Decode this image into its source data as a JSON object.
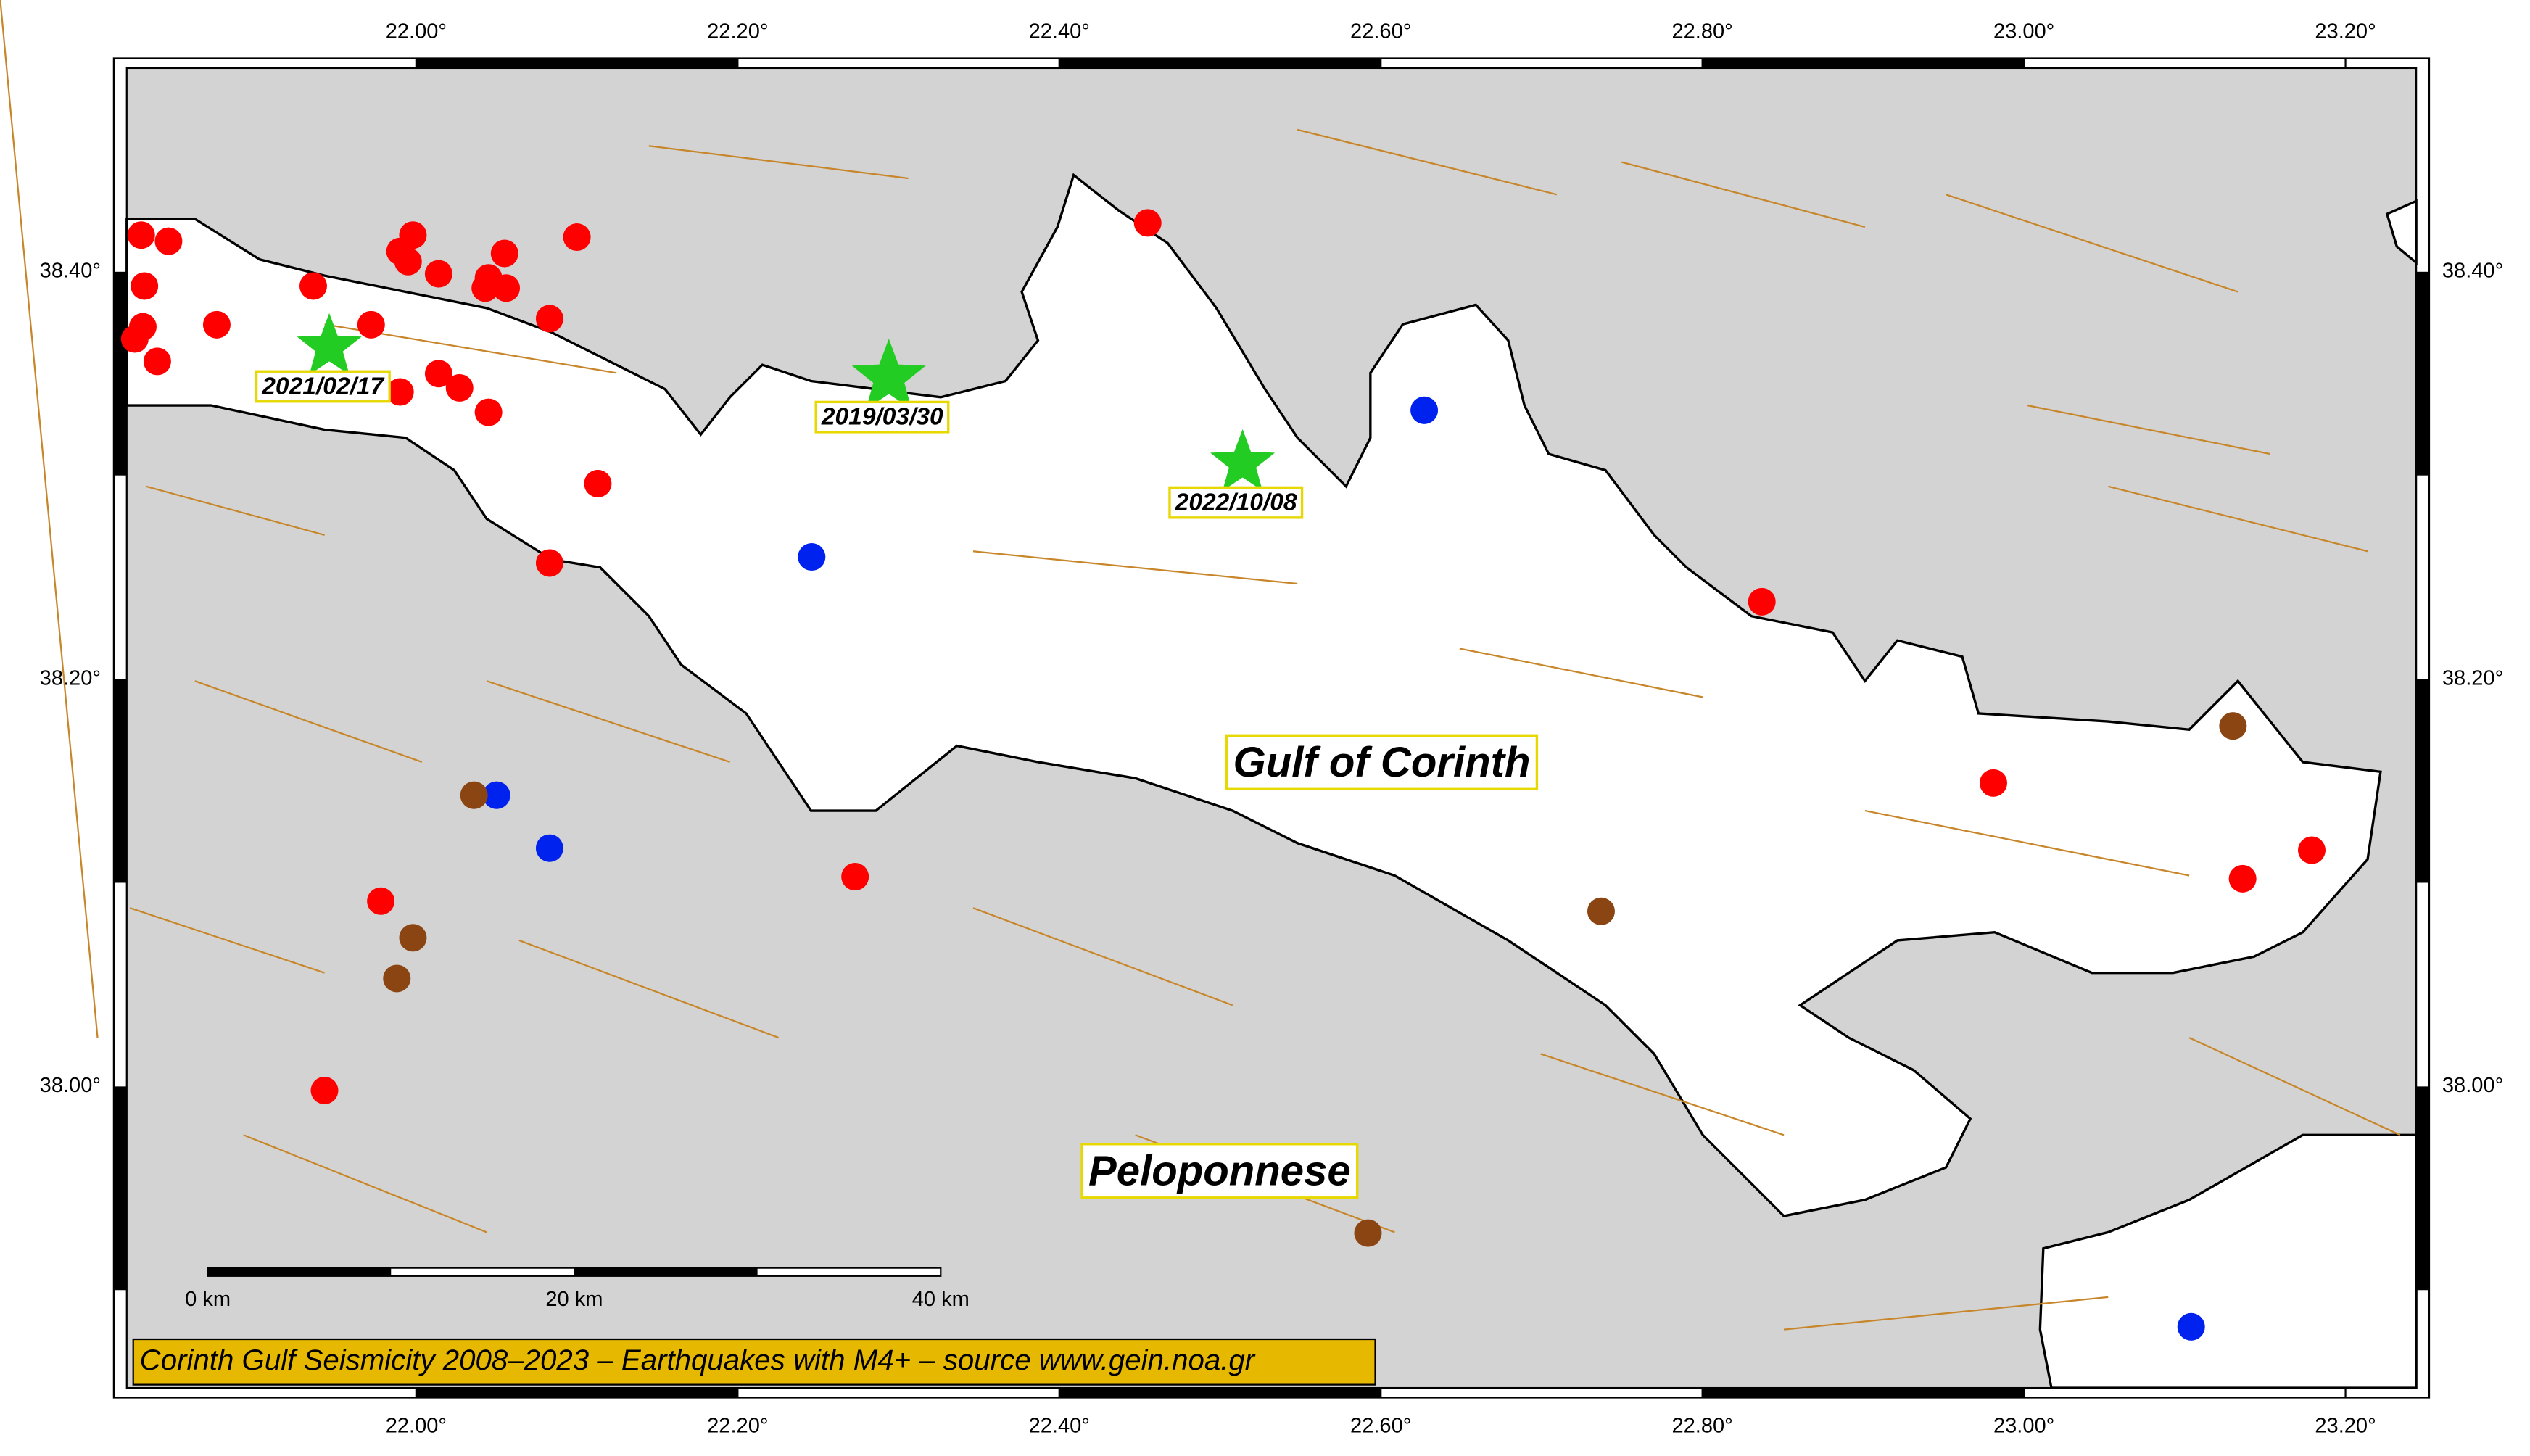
{
  "map": {
    "title": "Corinth Gulf Seismicity 2008–2023 – Earthquakes with M4+ – source www.gein.noa.gr",
    "xlim": [
      21.82,
      23.244
    ],
    "ylim": [
      37.852,
      38.5
    ],
    "xticks": [
      {
        "value": 22.0,
        "label": "22.00°"
      },
      {
        "value": 22.2,
        "label": "22.20°"
      },
      {
        "value": 22.4,
        "label": "22.40°"
      },
      {
        "value": 22.6,
        "label": "22.60°"
      },
      {
        "value": 22.8,
        "label": "22.80°"
      },
      {
        "value": 23.0,
        "label": "23.00°"
      },
      {
        "value": 23.2,
        "label": "23.20°"
      }
    ],
    "yticks": [
      {
        "value": 38.0,
        "label": "38.00°"
      },
      {
        "value": 38.2,
        "label": "38.20°"
      },
      {
        "value": 38.4,
        "label": "38.40°"
      }
    ],
    "place_labels": [
      "Gulf of Corinth",
      "Peloponnese"
    ],
    "scale_bar": [
      {
        "value": 0,
        "label": "0 km"
      },
      {
        "value": 20,
        "label": "20 km"
      },
      {
        "value": 40,
        "label": "40 km"
      }
    ],
    "groups": [
      {
        "color": "#ff0000",
        "lon": [
          21.829,
          21.846,
          21.831,
          21.83,
          21.825,
          21.839,
          21.876,
          21.936,
          21.972,
          21.99,
          21.998,
          21.99,
          21.995,
          22.014,
          22.014,
          22.027,
          22.045,
          22.045,
          22.043,
          22.056,
          22.055,
          22.083,
          22.1,
          22.113,
          22.083,
          22.455,
          22.837,
          22.981,
          23.136,
          23.179,
          22.273,
          21.978,
          21.943
        ],
        "lat": [
          38.418,
          38.415,
          38.393,
          38.373,
          38.367,
          38.356,
          38.374,
          38.393,
          38.374,
          38.341,
          38.418,
          38.41,
          38.405,
          38.399,
          38.35,
          38.343,
          38.331,
          38.397,
          38.392,
          38.392,
          38.409,
          38.377,
          38.417,
          38.296,
          38.257,
          38.424,
          38.238,
          38.149,
          38.102,
          38.116,
          38.103,
          38.091,
          37.998
        ]
      },
      {
        "color": "#0022ee",
        "lon": [
          22.246,
          22.627,
          22.05,
          22.083,
          23.104
        ],
        "lat": [
          38.26,
          38.332,
          38.143,
          38.117,
          37.882
        ]
      },
      {
        "color": "#8b4513",
        "lon": [
          22.036,
          21.998,
          21.988,
          22.737,
          23.13,
          22.592
        ],
        "lat": [
          38.143,
          38.073,
          38.053,
          38.086,
          38.177,
          37.928
        ]
      }
    ],
    "stars": {
      "color": "#22cc22",
      "lon": [
        21.946,
        22.294,
        22.514
      ],
      "lat": [
        38.363,
        38.348,
        38.306
      ],
      "labels": [
        "2021/02/17",
        "2019/03/30",
        "2022/10/08"
      ]
    }
  }
}
